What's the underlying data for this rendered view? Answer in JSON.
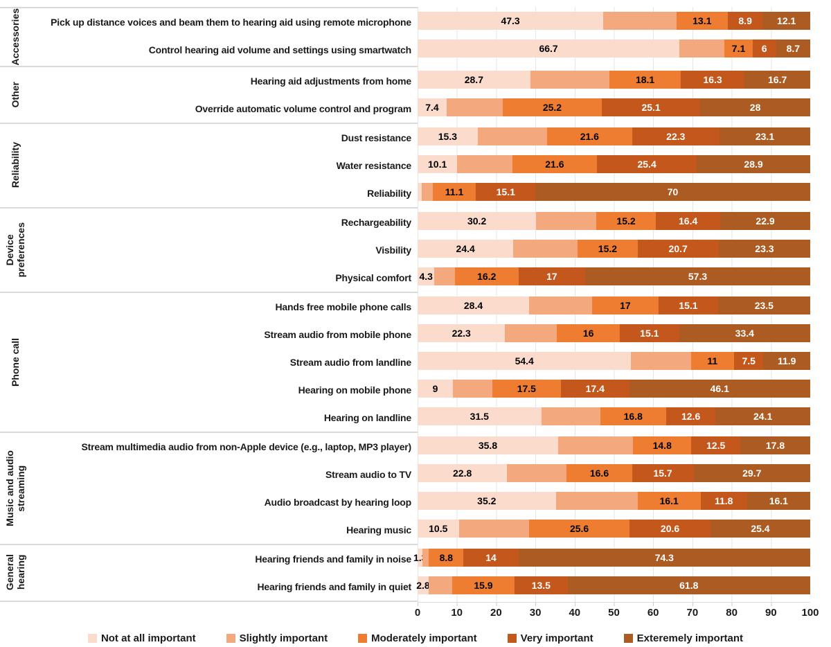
{
  "chart_data": {
    "type": "bar",
    "stacked": true,
    "orientation": "horizontal",
    "xlim": [
      0,
      100
    ],
    "grid": "vertical-light",
    "legend_position": "bottom",
    "axis": {
      "ticks": [
        "0",
        "10",
        "20",
        "30",
        "40",
        "50",
        "60",
        "70",
        "80",
        "90",
        "100"
      ]
    },
    "series": [
      {
        "name": "Not at all important",
        "color": "#FBDCCC",
        "label_color": "#000000"
      },
      {
        "name": "Slightly important",
        "color": "#F3A87E",
        "label_color": "#000000"
      },
      {
        "name": "Moderately important",
        "color": "#EE7D31",
        "label_color": "#000000"
      },
      {
        "name": "Very important",
        "color": "#C4581C",
        "label_color": "#ffffff"
      },
      {
        "name": "Exteremely important",
        "color": "#AC5C22",
        "label_color": "#ffffff"
      }
    ],
    "groups": [
      {
        "name": "Accessories",
        "rows": [
          {
            "label": "Pick up distance voices and beam them to hearing aid using remote microphone",
            "values": [
              47.3,
              18.6,
              13.1,
              8.9,
              12.1
            ],
            "labels": [
              "47.3",
              "",
              "13.1",
              "8.9",
              "12.1"
            ]
          },
          {
            "label": "Control hearing aid volume and settings using smartwatch",
            "values": [
              66.7,
              11.5,
              7.1,
              6,
              8.7
            ],
            "labels": [
              "66.7",
              "",
              "7.1",
              "6",
              "8.7"
            ]
          }
        ]
      },
      {
        "name": "Other",
        "rows": [
          {
            "label": "Hearing aid adjustments from home",
            "values": [
              28.7,
              20.2,
              18.1,
              16.3,
              16.7
            ],
            "labels": [
              "28.7",
              "",
              "18.1",
              "16.3",
              "16.7"
            ]
          },
          {
            "label": "Override automatic volume control and program",
            "values": [
              7.4,
              14.3,
              25.2,
              25.1,
              28
            ],
            "labels": [
              "7.4",
              "",
              "25.2",
              "25.1",
              "28"
            ]
          }
        ]
      },
      {
        "name": "Reliability",
        "rows": [
          {
            "label": "Dust resistance",
            "values": [
              15.3,
              17.7,
              21.6,
              22.3,
              23.1
            ],
            "labels": [
              "15.3",
              "",
              "21.6",
              "22.3",
              "23.1"
            ]
          },
          {
            "label": "Water resistance",
            "values": [
              10.1,
              14.0,
              21.6,
              25.4,
              28.9
            ],
            "labels": [
              "10.1",
              "",
              "21.6",
              "25.4",
              "28.9"
            ]
          },
          {
            "label": "Reliability",
            "values": [
              1.0,
              2.8,
              11.1,
              15.1,
              70
            ],
            "labels": [
              "",
              "",
              "11.1",
              "15.1",
              "70"
            ]
          }
        ]
      },
      {
        "name": "Device\npreferences",
        "rows": [
          {
            "label": "Rechargeability",
            "values": [
              30.2,
              15.3,
              15.2,
              16.4,
              22.9
            ],
            "labels": [
              "30.2",
              "",
              "15.2",
              "16.4",
              "22.9"
            ]
          },
          {
            "label": "Visbility",
            "values": [
              24.4,
              16.4,
              15.2,
              20.7,
              23.3
            ],
            "labels": [
              "24.4",
              "",
              "15.2",
              "20.7",
              "23.3"
            ]
          },
          {
            "label": "Physical comfort",
            "values": [
              4.3,
              5.2,
              16.2,
              17,
              57.3
            ],
            "labels": [
              "4.3",
              "",
              "16.2",
              "17",
              "57.3"
            ]
          }
        ]
      },
      {
        "name": "Phone call",
        "rows": [
          {
            "label": "Hands free mobile phone calls",
            "values": [
              28.4,
              16.0,
              17,
              15.1,
              23.5
            ],
            "labels": [
              "28.4",
              "",
              "17",
              "15.1",
              "23.5"
            ]
          },
          {
            "label": "Stream audio from mobile phone",
            "values": [
              22.3,
              13.2,
              16,
              15.1,
              33.4
            ],
            "labels": [
              "22.3",
              "",
              "16",
              "15.1",
              "33.4"
            ]
          },
          {
            "label": "Stream audio from landline",
            "values": [
              54.4,
              15.2,
              11,
              7.5,
              11.9
            ],
            "labels": [
              "54.4",
              "",
              "11",
              "7.5",
              "11.9"
            ]
          },
          {
            "label": "Hearing on mobile phone",
            "values": [
              9,
              10.0,
              17.5,
              17.4,
              46.1
            ],
            "labels": [
              "9",
              "",
              "17.5",
              "17.4",
              "46.1"
            ]
          },
          {
            "label": "Hearing on landline",
            "values": [
              31.5,
              15.0,
              16.8,
              12.6,
              24.1
            ],
            "labels": [
              "31.5",
              "",
              "16.8",
              "12.6",
              "24.1"
            ]
          }
        ]
      },
      {
        "name": "Music and audio\nstreaming",
        "rows": [
          {
            "label": "Stream multimedia audio from non-Apple device (e.g., laptop, MP3 player)",
            "values": [
              35.8,
              19.1,
              14.8,
              12.5,
              17.8
            ],
            "labels": [
              "35.8",
              "",
              "14.8",
              "12.5",
              "17.8"
            ]
          },
          {
            "label": "Stream audio to TV",
            "values": [
              22.8,
              15.2,
              16.6,
              15.7,
              29.7
            ],
            "labels": [
              "22.8",
              "",
              "16.6",
              "15.7",
              "29.7"
            ]
          },
          {
            "label": "Audio broadcast by hearing loop",
            "values": [
              35.2,
              20.8,
              16.1,
              11.8,
              16.1
            ],
            "labels": [
              "35.2",
              "",
              "16.1",
              "11.8",
              "16.1"
            ]
          },
          {
            "label": "Hearing music",
            "values": [
              10.5,
              17.9,
              25.6,
              20.6,
              25.4
            ],
            "labels": [
              "10.5",
              "",
              "25.6",
              "20.6",
              "25.4"
            ]
          }
        ]
      },
      {
        "name": "General\nhearing",
        "rows": [
          {
            "label": "Hearing friends and family in noise",
            "values": [
              1.3,
              1.6,
              8.8,
              14,
              74.3
            ],
            "labels": [
              "1.3",
              "",
              "8.8",
              "14",
              "74.3"
            ]
          },
          {
            "label": "Hearing friends and family in quiet",
            "values": [
              2.8,
              6.0,
              15.9,
              13.5,
              61.8
            ],
            "labels": [
              "2.8",
              "",
              "15.9",
              "13.5",
              "61.8"
            ]
          }
        ]
      }
    ]
  }
}
